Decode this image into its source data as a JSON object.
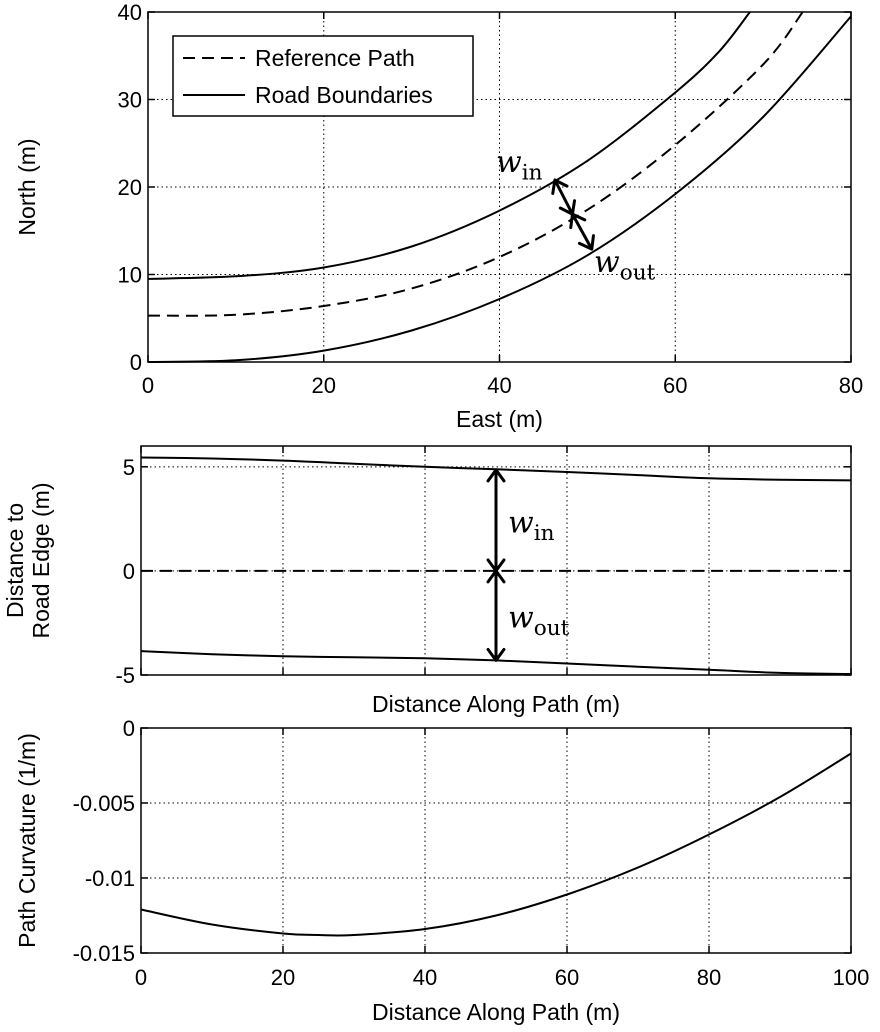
{
  "chart_data": [
    {
      "type": "line",
      "xlabel": "East (m)",
      "ylabel": "North (m)",
      "xlim": [
        0,
        80
      ],
      "ylim": [
        0,
        40
      ],
      "xticks": [
        0,
        20,
        40,
        60,
        80
      ],
      "yticks": [
        0,
        10,
        20,
        30,
        40
      ],
      "grid": true,
      "legend": {
        "position": "top-left",
        "entries": [
          {
            "name": "Reference Path",
            "style": "dashed"
          },
          {
            "name": "Road Boundaries",
            "style": "solid"
          }
        ]
      },
      "series": [
        {
          "name": "Road Boundaries",
          "style": "solid",
          "x": [
            0,
            10,
            20,
            30,
            40,
            50,
            60,
            65,
            68.5
          ],
          "y": [
            9.5,
            9.8,
            10.8,
            13.2,
            17.3,
            23,
            30.8,
            35.5,
            40
          ]
        },
        {
          "name": "Reference Path",
          "style": "dashed",
          "x": [
            0,
            10,
            20,
            30,
            40,
            50,
            60,
            70,
            74.5
          ],
          "y": [
            5.3,
            5.4,
            6.4,
            8.4,
            12.0,
            17.4,
            24.8,
            34.0,
            40
          ]
        },
        {
          "name": "Road Boundaries",
          "style": "solid",
          "x": [
            0,
            10,
            20,
            30,
            40,
            50,
            60,
            70,
            80
          ],
          "y": [
            0,
            0.2,
            1.3,
            3.6,
            7.2,
            12.2,
            19.2,
            28.0,
            39.5
          ]
        }
      ],
      "annotations": [
        {
          "label": "w",
          "sub": "in",
          "from": [
            46.3,
            20.8
          ],
          "to": [
            48.3,
            16.9
          ]
        },
        {
          "label": "w",
          "sub": "out",
          "from": [
            48.3,
            16.9
          ],
          "to": [
            50.5,
            12.9
          ]
        }
      ]
    },
    {
      "type": "line",
      "xlabel": "Distance Along Path (m)",
      "ylabel": [
        "Distance to",
        "Road Edge (m)"
      ],
      "xlim": [
        0,
        100
      ],
      "ylim": [
        -5,
        6
      ],
      "xticks": [
        0,
        20,
        40,
        60,
        80,
        100
      ],
      "yticks": [
        -5,
        0,
        5
      ],
      "grid": true,
      "series": [
        {
          "name": "w_in",
          "style": "solid",
          "x": [
            0,
            10,
            20,
            30,
            40,
            50,
            60,
            70,
            80,
            90,
            100
          ],
          "y": [
            5.45,
            5.4,
            5.3,
            5.15,
            5.0,
            4.88,
            4.75,
            4.6,
            4.45,
            4.38,
            4.35
          ]
        },
        {
          "name": "centerline",
          "style": "dashed",
          "x": [
            0,
            100
          ],
          "y": [
            0,
            0
          ]
        },
        {
          "name": "w_out",
          "style": "solid",
          "x": [
            0,
            10,
            20,
            30,
            40,
            50,
            60,
            70,
            80,
            90,
            100
          ],
          "y": [
            -3.85,
            -4.0,
            -4.1,
            -4.15,
            -4.2,
            -4.3,
            -4.45,
            -4.6,
            -4.75,
            -4.9,
            -4.95
          ]
        }
      ],
      "annotations": [
        {
          "label": "w",
          "sub": "in",
          "x": 50,
          "from": 0,
          "to": 4.85
        },
        {
          "label": "w",
          "sub": "out",
          "x": 50,
          "from": 0,
          "to": -4.3
        }
      ]
    },
    {
      "type": "line",
      "xlabel": "Distance Along Path (m)",
      "ylabel": "Path Curvature (1/m)",
      "xlim": [
        0,
        100
      ],
      "ylim": [
        -0.015,
        0
      ],
      "xticks": [
        0,
        20,
        40,
        60,
        80,
        100
      ],
      "xtick_labels": [
        "0",
        "20",
        "40",
        "60",
        "80",
        "100"
      ],
      "yticks": [
        -0.015,
        -0.01,
        -0.005,
        0
      ],
      "ytick_labels": [
        "-0.015",
        "-0.01",
        "-0.005",
        "0"
      ],
      "grid": true,
      "series": [
        {
          "name": "curvature",
          "style": "solid",
          "x": [
            0,
            10,
            20,
            25,
            30,
            40,
            50,
            60,
            70,
            80,
            90,
            100
          ],
          "y": [
            -0.0121,
            -0.0131,
            -0.0137,
            -0.0138,
            -0.0138,
            -0.0134,
            -0.0125,
            -0.0111,
            -0.0093,
            -0.0071,
            -0.0046,
            -0.0017
          ]
        }
      ]
    }
  ]
}
